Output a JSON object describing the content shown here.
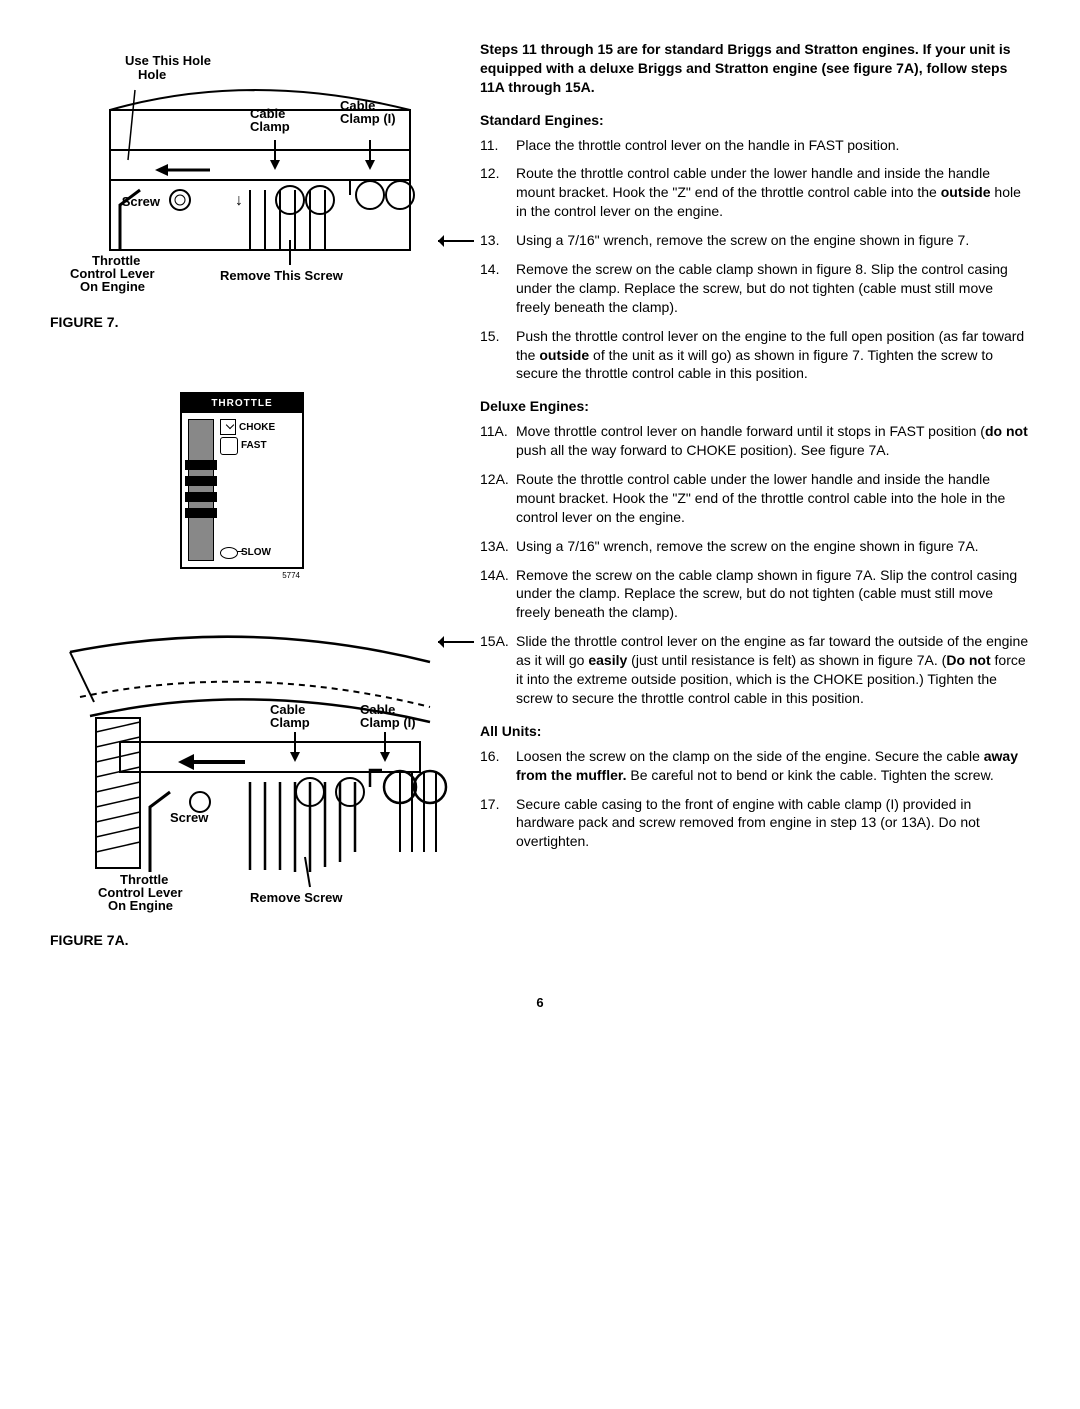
{
  "figures": {
    "fig7": {
      "label": "FIGURE 7.",
      "annotations": {
        "use_this_hole": "Use This\nHole",
        "cable_clamp": "Cable\nClamp",
        "cable_clamp_i": "Cable\nClamp (I)",
        "screw": "Screw",
        "throttle_lever": "Throttle\nControl Lever\nOn Engine",
        "remove_screw": "Remove This Screw"
      }
    },
    "throttle_panel": {
      "header": "THROTTLE",
      "choke": "CHOKE",
      "fast": "FAST",
      "slow": "SLOW",
      "sn": "5774"
    },
    "fig7a": {
      "label": "FIGURE 7A.",
      "annotations": {
        "cable_clamp": "Cable\nClamp",
        "cable_clamp_i": "Cable\nClamp (I)",
        "screw": "Screw",
        "throttle_lever": "Throttle\nControl Lever\nOn Engine",
        "remove_screw": "Remove Screw"
      }
    }
  },
  "text": {
    "lead": "Steps 11 through 15 are for standard Briggs and Stratton engines. If your unit is equipped with a deluxe Briggs and Stratton engine (see figure 7A), follow steps 11A through 15A.",
    "standard_head": "Standard Engines:",
    "deluxe_head": "Deluxe Engines:",
    "all_head": "All Units:",
    "steps_std": [
      {
        "n": "11.",
        "t": "Place the throttle control lever on the handle in FAST position."
      },
      {
        "n": "12.",
        "t": "Route the throttle control cable under the lower handle and inside the handle mount bracket. Hook the \"Z\" end of the throttle control cable into the <b>outside</b> hole in the control lever on the engine."
      },
      {
        "n": "13.",
        "t": "Using a 7/16\" wrench, remove the screw on the engine shown in figure 7.",
        "arrow": true
      },
      {
        "n": "14.",
        "t": "Remove the screw on the cable clamp shown in figure 8. Slip the control casing under the clamp. Replace the screw, but do not tighten (cable must still move freely beneath the clamp)."
      },
      {
        "n": "15.",
        "t": "Push the throttle control lever on the engine to the full open position (as far toward the <b>outside</b> of the unit as it will go) as shown in figure 7. Tighten the screw to secure the throttle control cable in this position."
      }
    ],
    "steps_dlx": [
      {
        "n": "11A.",
        "t": "Move throttle control lever on handle forward until it stops in FAST position (<b>do not</b> push all the way forward to CHOKE position). See figure 7A."
      },
      {
        "n": "12A.",
        "t": "Route the throttle control cable under the lower handle and inside the handle mount bracket. Hook the \"Z\" end of the throttle control cable into the hole in the control lever on the engine."
      },
      {
        "n": "13A.",
        "t": "Using a 7/16\" wrench, remove the screw on the engine shown in figure 7A."
      },
      {
        "n": "14A.",
        "t": "Remove the screw on the cable clamp shown in figure 7A. Slip the control casing under the clamp. Replace the screw, but do not tighten (cable must still move freely beneath the clamp)."
      },
      {
        "n": "15A.",
        "t": "Slide the throttle control lever on the engine as far toward the outside of the engine as it will go <b>easily</b> (just until resistance is felt) as shown in figure 7A. (<b>Do not</b> force it into the extreme outside position, which is the CHOKE position.) Tighten the screw to secure the throttle control cable in this position.",
        "arrow": true
      }
    ],
    "steps_all": [
      {
        "n": "16.",
        "t": "Loosen the screw on the clamp on the side of the engine. Secure the cable <b>away from the muffler.</b> Be careful not to bend or kink the cable. Tighten the screw."
      },
      {
        "n": "17.",
        "t": "Secure cable casing to the front of engine with cable clamp (I) provided in hardware pack and screw removed from engine in step 13 (or 13A). Do not overtighten."
      }
    ],
    "page_num": "6"
  }
}
